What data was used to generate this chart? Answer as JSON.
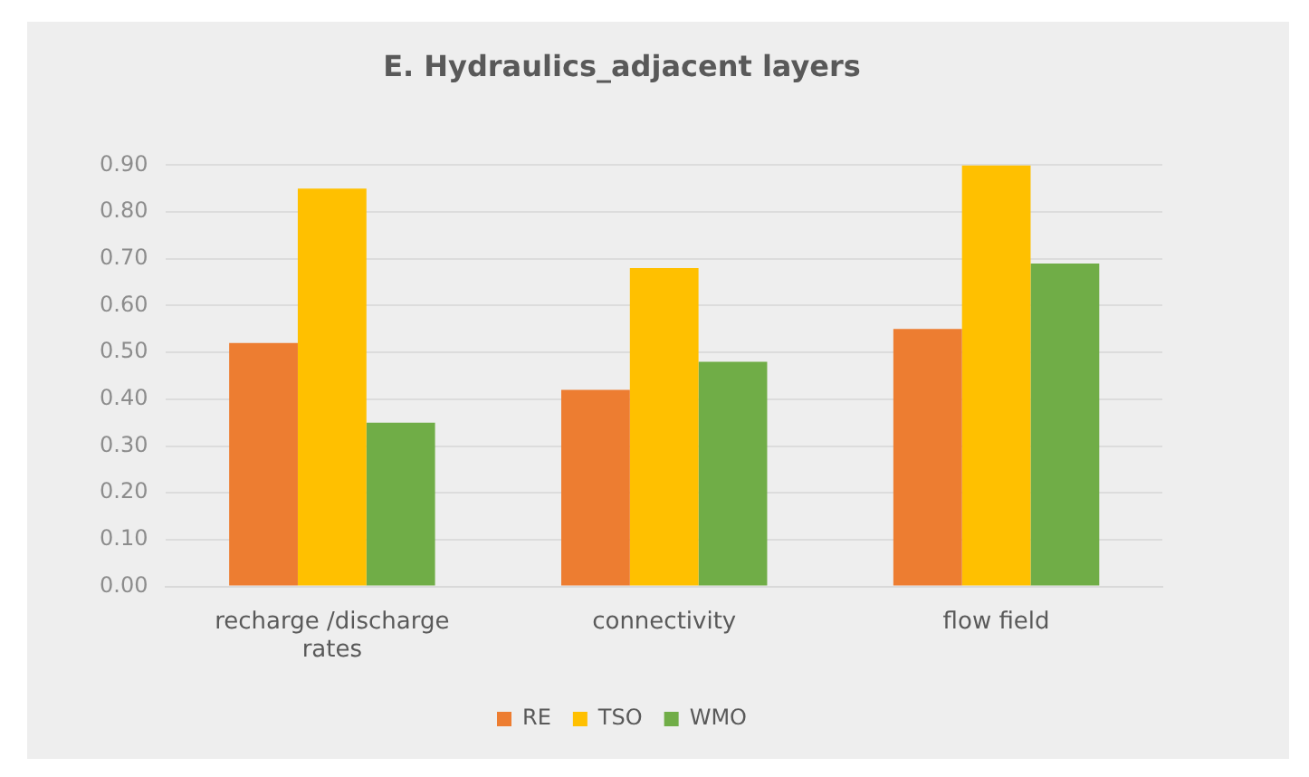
{
  "chart_data": {
    "type": "bar",
    "title": "E. Hydraulics_adjacent layers",
    "categories": [
      "recharge /discharge rates",
      "connectivity",
      "flow field"
    ],
    "series": [
      {
        "name": "RE",
        "color": "#ed7d31",
        "values": [
          0.52,
          0.42,
          0.55
        ]
      },
      {
        "name": "TSO",
        "color": "#ffc000",
        "values": [
          0.85,
          0.68,
          0.9
        ]
      },
      {
        "name": "WMO",
        "color": "#70ad47",
        "values": [
          0.35,
          0.48,
          0.69
        ]
      }
    ],
    "ylim": [
      0,
      0.9
    ],
    "yticks": [
      {
        "value": 0,
        "label": "0.00"
      },
      {
        "value": 0.1,
        "label": "0.10"
      },
      {
        "value": 0.2,
        "label": "0.20"
      },
      {
        "value": 0.3,
        "label": "0.30"
      },
      {
        "value": 0.4,
        "label": "0.40"
      },
      {
        "value": 0.5,
        "label": "0.50"
      },
      {
        "value": 0.6,
        "label": "0.60"
      },
      {
        "value": 0.7,
        "label": "0.70"
      },
      {
        "value": 0.8,
        "label": "0.80"
      },
      {
        "value": 0.9,
        "label": "0.90"
      }
    ],
    "grid": "y",
    "legend": "bottom"
  }
}
